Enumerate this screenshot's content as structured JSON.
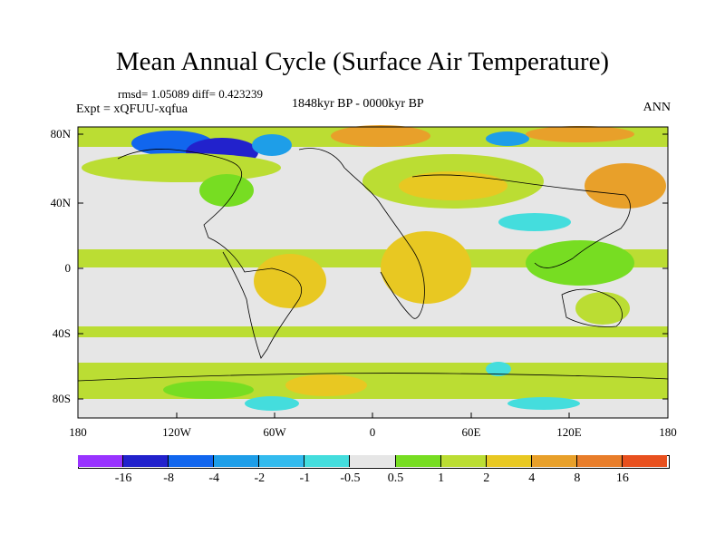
{
  "title": "Mean Annual Cycle (Surface Air Temperature)",
  "stats": "rmsd= 1.05089 diff= 0.423239",
  "experiment": "Expt = xQFUU-xqfua",
  "period": "1848kyr BP - 0000kyr BP",
  "season": "ANN",
  "y_axis_labels": [
    "80N",
    "40N",
    "0",
    "40S",
    "80S"
  ],
  "x_axis_labels": [
    "180",
    "120W",
    "60W",
    "0",
    "60E",
    "120E",
    "180"
  ],
  "colorbar": {
    "colors": [
      "#9933ff",
      "#2222cc",
      "#1166ee",
      "#1e9ee8",
      "#33bbee",
      "#44dddd",
      "#e6e6e6",
      "#77dd22",
      "#bbdd33",
      "#e8c822",
      "#e8a02a",
      "#e87d2a",
      "#e8501e"
    ],
    "labels": [
      "-16",
      "-8",
      "-4",
      "-2",
      "-1",
      "-0.5",
      "0.5",
      "1",
      "2",
      "4",
      "8",
      "16"
    ]
  }
}
